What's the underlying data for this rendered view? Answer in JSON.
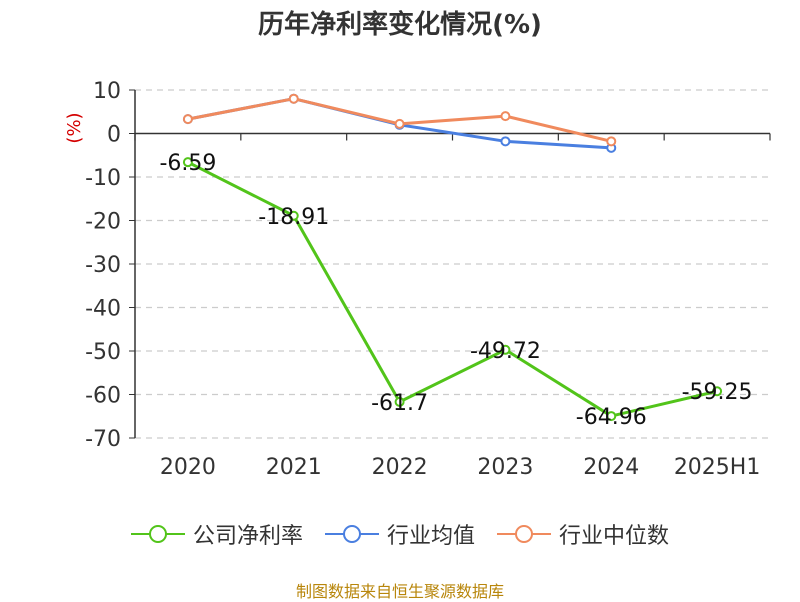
{
  "title": "历年净利率变化情况(%)",
  "footer": "制图数据来自恒生聚源数据库",
  "chart_data": {
    "type": "line",
    "title": "历年净利率变化情况(%)",
    "ylabel": "(%)",
    "xlabel": "",
    "categories": [
      "2020",
      "2021",
      "2022",
      "2023",
      "2024",
      "2025H1"
    ],
    "ylim": [
      -70,
      10
    ],
    "yticks": [
      10,
      0,
      -10,
      -20,
      -30,
      -40,
      -50,
      -60,
      -70
    ],
    "grid": true,
    "legend_position": "bottom",
    "series": [
      {
        "name": "公司净利率",
        "color": "#52c41a",
        "values": [
          -6.59,
          -18.91,
          -61.7,
          -49.72,
          -64.96,
          -59.25
        ],
        "labels": [
          "-6.59",
          "-18.91",
          "-61.7",
          "-49.72",
          "-64.96",
          "-59.25"
        ]
      },
      {
        "name": "行业均值",
        "color": "#4a7fe0",
        "values": [
          3.3,
          8.0,
          2.0,
          -1.8,
          -3.3,
          null
        ]
      },
      {
        "name": "行业中位数",
        "color": "#f08a5d",
        "values": [
          3.3,
          8.0,
          2.2,
          4.0,
          -1.8,
          null
        ]
      }
    ]
  }
}
